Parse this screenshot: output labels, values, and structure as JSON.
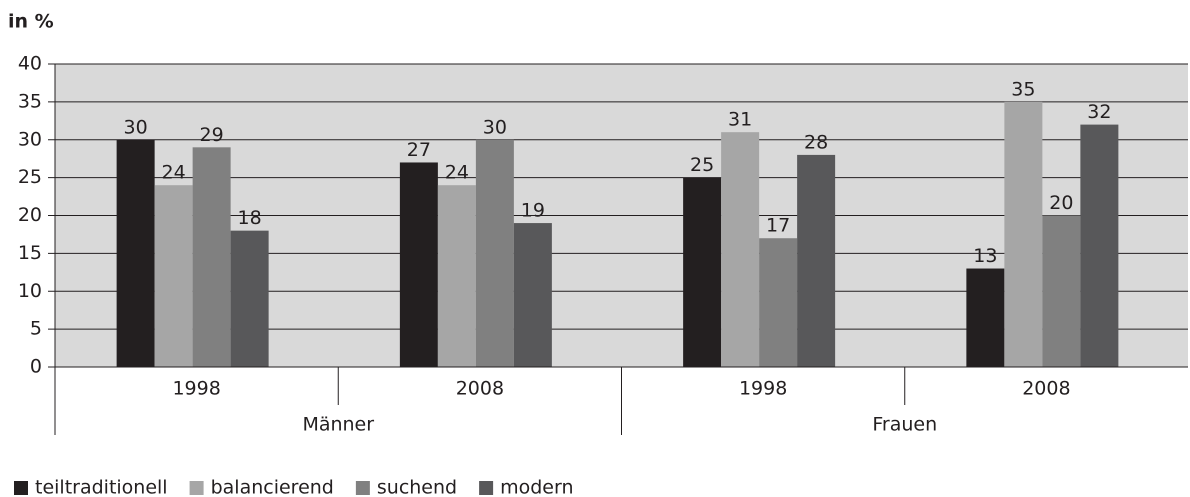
{
  "chart_data": {
    "type": "bar",
    "ylabel": "in %",
    "categories": [
      "1998",
      "2008",
      "1998",
      "2008"
    ],
    "groups": [
      "Männer",
      "Frauen"
    ],
    "series": [
      {
        "name": "teiltraditionell",
        "color": "#231f20",
        "values": [
          30,
          27,
          25,
          13
        ]
      },
      {
        "name": "balancierend",
        "color": "#a6a6a6",
        "values": [
          24,
          24,
          31,
          35
        ]
      },
      {
        "name": "suchend",
        "color": "#808080",
        "values": [
          29,
          30,
          17,
          20
        ]
      },
      {
        "name": "modern",
        "color": "#58585a",
        "values": [
          18,
          19,
          28,
          32
        ]
      }
    ],
    "ylim": [
      0,
      40
    ],
    "yticks": [
      0,
      5,
      10,
      15,
      20,
      25,
      30,
      35,
      40
    ],
    "grid": true,
    "legend": "bottom-left"
  }
}
